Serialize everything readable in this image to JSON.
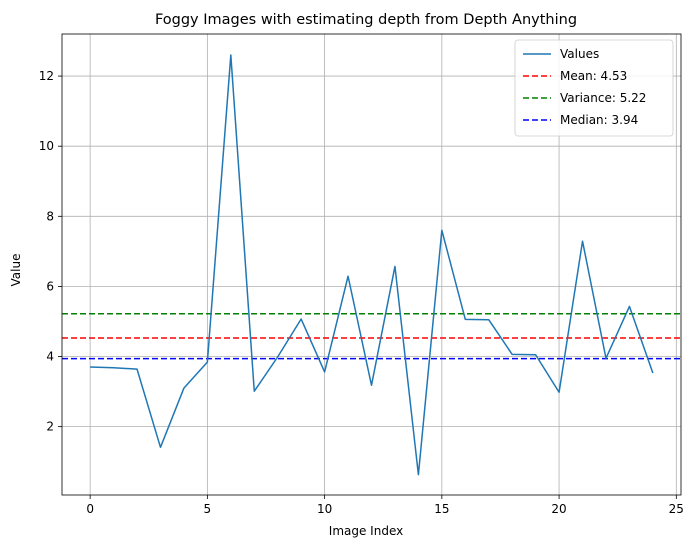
{
  "chart_data": {
    "type": "line",
    "title": "Foggy Images with estimating depth from Depth Anything",
    "xlabel": "Image Index",
    "ylabel": "Value",
    "xlim": [
      -1.2,
      25.2
    ],
    "ylim": [
      0.05,
      13.2
    ],
    "xticks": [
      0,
      5,
      10,
      15,
      20,
      25
    ],
    "yticks": [
      2,
      4,
      6,
      8,
      10,
      12
    ],
    "grid": true,
    "legend_position": "top-right",
    "series": [
      {
        "name": "Values",
        "color": "#1f77b4",
        "x": [
          0,
          1,
          2,
          3,
          4,
          5,
          6,
          7,
          8,
          9,
          10,
          11,
          12,
          13,
          14,
          15,
          16,
          17,
          18,
          19,
          20,
          21,
          22,
          23,
          24
        ],
        "values": [
          3.7,
          3.68,
          3.64,
          1.41,
          3.1,
          3.84,
          12.6,
          3.01,
          3.99,
          5.07,
          3.56,
          6.29,
          3.18,
          6.57,
          0.63,
          7.6,
          5.06,
          5.05,
          4.06,
          4.05,
          2.98,
          7.29,
          3.95,
          5.43,
          3.53
        ]
      }
    ],
    "reference_lines": [
      {
        "label": "Mean: 4.53",
        "value": 4.53,
        "color": "#ff0000",
        "style": "dashed"
      },
      {
        "label": "Variance: 5.22",
        "value": 5.22,
        "color": "#008000",
        "style": "dashed"
      },
      {
        "label": "Median: 3.94",
        "value": 3.94,
        "color": "#0000ff",
        "style": "dashed"
      }
    ]
  }
}
